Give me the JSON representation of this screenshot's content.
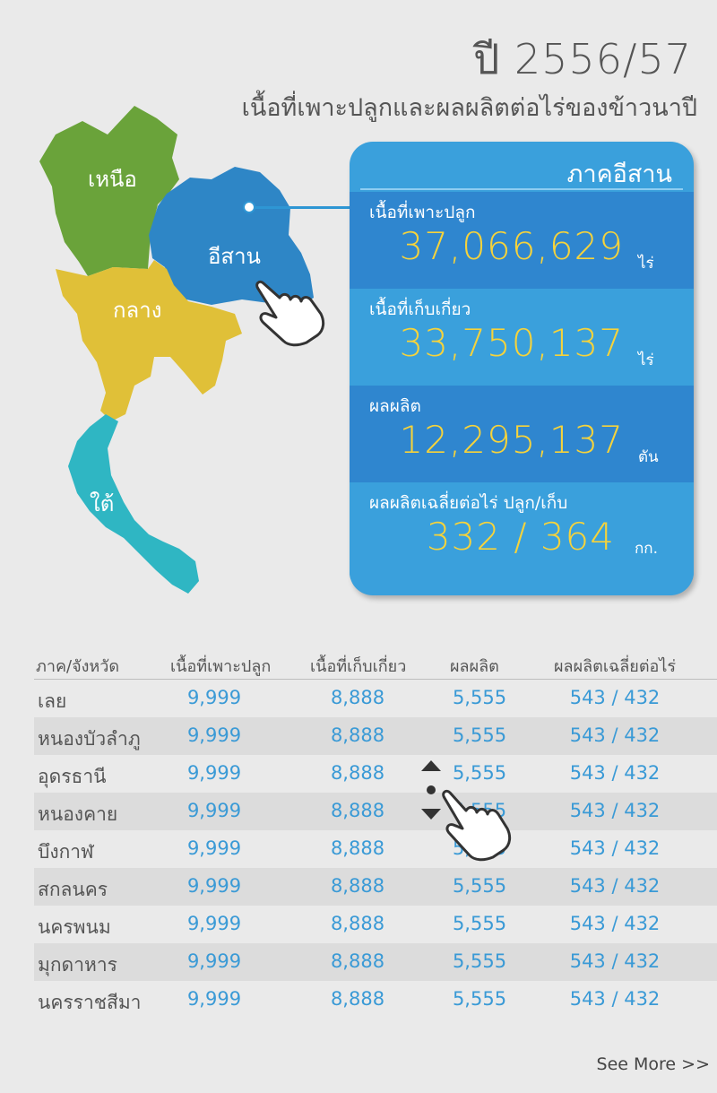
{
  "header": {
    "year": "ปี 2556/57",
    "subtitle": "เนื้อที่เพาะปลูกและผลผลิตต่อไร่ของข้าวนาปี"
  },
  "map": {
    "regions": [
      {
        "key": "north",
        "label": "เหนือ",
        "color": "#6aa33a"
      },
      {
        "key": "isan",
        "label": "อีสาน",
        "color": "#2e86c6"
      },
      {
        "key": "central",
        "label": "กลาง",
        "color": "#e0c038"
      },
      {
        "key": "south",
        "label": "ใต้",
        "color": "#2fb6c3"
      }
    ]
  },
  "panel": {
    "title": "ภาคอีสาน",
    "stats": [
      {
        "label": "เนื้อที่เพาะปลูก",
        "value": "37,066,629",
        "unit": "ไร่"
      },
      {
        "label": "เนื้อที่เก็บเกี่ยว",
        "value": "33,750,137",
        "unit": "ไร่"
      },
      {
        "label": "ผลผลิต",
        "value": "12,295,137",
        "unit": "ตัน"
      },
      {
        "label": "ผลผลิตเฉลี่ยต่อไร่ ปลูก/เก็บ",
        "value": "332 / 364",
        "unit": "กก."
      }
    ]
  },
  "table": {
    "headers": [
      "ภาค/จังหวัด",
      "เนื้อที่เพาะปลูก",
      "เนื้อที่เก็บเกี่ยว",
      "ผลผลิต",
      "ผลผลิตเฉลี่ยต่อไร่"
    ],
    "rows": [
      [
        "เลย",
        "9,999",
        "8,888",
        "5,555",
        "543  /  432"
      ],
      [
        "หนองบัวลำภู",
        "9,999",
        "8,888",
        "5,555",
        "543  /  432"
      ],
      [
        "อุดรธานี",
        "9,999",
        "8,888",
        "5,555",
        "543  /  432"
      ],
      [
        "หนองคาย",
        "9,999",
        "8,888",
        "5,555",
        "543  /  432"
      ],
      [
        "บึงกาฬ",
        "9,999",
        "8,888",
        "5,555",
        "543  /  432"
      ],
      [
        "สกลนคร",
        "9,999",
        "8,888",
        "5,555",
        "543  /  432"
      ],
      [
        "นครพนม",
        "9,999",
        "8,888",
        "5,555",
        "543  /  432"
      ],
      [
        "มุกดาหาร",
        "9,999",
        "8,888",
        "5,555",
        "543  /  432"
      ],
      [
        "นครราชสีมา",
        "9,999",
        "8,888",
        "5,555",
        "543  /  432"
      ]
    ]
  },
  "footer": {
    "see_more": "See More >>"
  }
}
